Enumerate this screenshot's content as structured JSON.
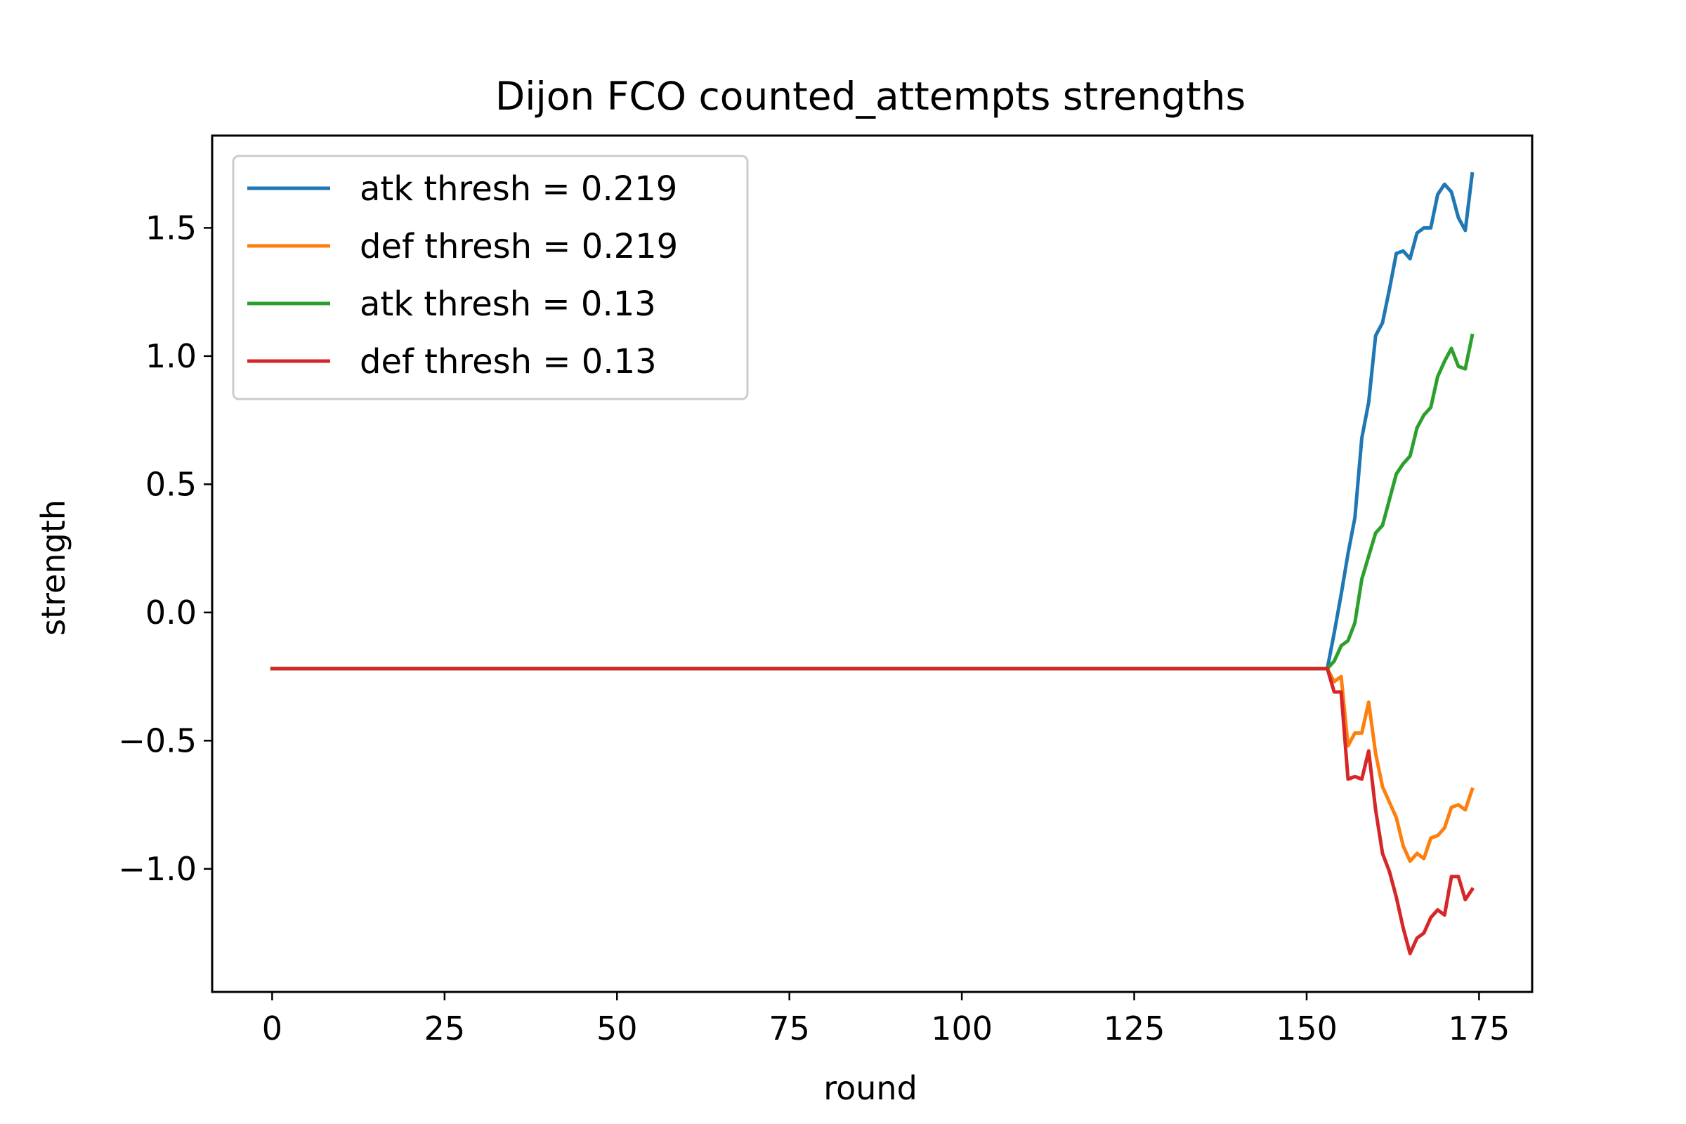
{
  "chart_data": {
    "type": "line",
    "title": "Dijon FCO counted_attempts strengths",
    "xlabel": "round",
    "ylabel": "strength",
    "xlim": [
      -8.7,
      182.7
    ],
    "ylim": [
      -1.48,
      1.86
    ],
    "xticks": [
      0,
      25,
      50,
      75,
      100,
      125,
      150,
      175
    ],
    "xtick_labels": [
      "0",
      "25",
      "50",
      "75",
      "100",
      "125",
      "150",
      "175"
    ],
    "yticks": [
      -1.0,
      -0.5,
      0.0,
      0.5,
      1.0,
      1.5
    ],
    "ytick_labels": [
      "−1.0",
      "−0.5",
      "0.0",
      "0.5",
      "1.0",
      "1.5"
    ],
    "grid": false,
    "legend_position": "upper-left",
    "series": [
      {
        "name": "atk thresh = 0.219",
        "color": "#1f77b4",
        "points": [
          [
            0,
            -0.219
          ],
          [
            153,
            -0.219
          ],
          [
            154,
            -0.08
          ],
          [
            155,
            0.07
          ],
          [
            156,
            0.23
          ],
          [
            157,
            0.37
          ],
          [
            158,
            0.68
          ],
          [
            159,
            0.82
          ],
          [
            160,
            1.08
          ],
          [
            161,
            1.13
          ],
          [
            162,
            1.26
          ],
          [
            163,
            1.4
          ],
          [
            164,
            1.41
          ],
          [
            165,
            1.38
          ],
          [
            166,
            1.48
          ],
          [
            167,
            1.5
          ],
          [
            168,
            1.5
          ],
          [
            169,
            1.63
          ],
          [
            170,
            1.67
          ],
          [
            171,
            1.64
          ],
          [
            172,
            1.54
          ],
          [
            173,
            1.49
          ],
          [
            174,
            1.71
          ]
        ]
      },
      {
        "name": "def thresh = 0.219",
        "color": "#ff7f0e",
        "points": [
          [
            0,
            -0.219
          ],
          [
            153,
            -0.219
          ],
          [
            154,
            -0.27
          ],
          [
            155,
            -0.25
          ],
          [
            156,
            -0.52
          ],
          [
            157,
            -0.47
          ],
          [
            158,
            -0.47
          ],
          [
            159,
            -0.35
          ],
          [
            160,
            -0.55
          ],
          [
            161,
            -0.68
          ],
          [
            162,
            -0.74
          ],
          [
            163,
            -0.8
          ],
          [
            164,
            -0.91
          ],
          [
            165,
            -0.97
          ],
          [
            166,
            -0.94
          ],
          [
            167,
            -0.96
          ],
          [
            168,
            -0.88
          ],
          [
            169,
            -0.87
          ],
          [
            170,
            -0.84
          ],
          [
            171,
            -0.76
          ],
          [
            172,
            -0.75
          ],
          [
            173,
            -0.77
          ],
          [
            174,
            -0.69
          ]
        ]
      },
      {
        "name": "atk thresh = 0.13",
        "color": "#2ca02c",
        "points": [
          [
            0,
            -0.219
          ],
          [
            153,
            -0.219
          ],
          [
            154,
            -0.19
          ],
          [
            155,
            -0.13
          ],
          [
            156,
            -0.11
          ],
          [
            157,
            -0.04
          ],
          [
            158,
            0.13
          ],
          [
            159,
            0.22
          ],
          [
            160,
            0.31
          ],
          [
            161,
            0.34
          ],
          [
            162,
            0.44
          ],
          [
            163,
            0.54
          ],
          [
            164,
            0.58
          ],
          [
            165,
            0.61
          ],
          [
            166,
            0.72
          ],
          [
            167,
            0.77
          ],
          [
            168,
            0.8
          ],
          [
            169,
            0.92
          ],
          [
            170,
            0.98
          ],
          [
            171,
            1.03
          ],
          [
            172,
            0.96
          ],
          [
            173,
            0.95
          ],
          [
            174,
            1.08
          ]
        ]
      },
      {
        "name": "def thresh = 0.13",
        "color": "#d62728",
        "points": [
          [
            0,
            -0.219
          ],
          [
            153,
            -0.219
          ],
          [
            154,
            -0.31
          ],
          [
            155,
            -0.31
          ],
          [
            156,
            -0.65
          ],
          [
            157,
            -0.64
          ],
          [
            158,
            -0.65
          ],
          [
            159,
            -0.54
          ],
          [
            160,
            -0.77
          ],
          [
            161,
            -0.94
          ],
          [
            162,
            -1.01
          ],
          [
            163,
            -1.11
          ],
          [
            164,
            -1.23
          ],
          [
            165,
            -1.33
          ],
          [
            166,
            -1.27
          ],
          [
            167,
            -1.25
          ],
          [
            168,
            -1.19
          ],
          [
            169,
            -1.16
          ],
          [
            170,
            -1.18
          ],
          [
            171,
            -1.03
          ],
          [
            172,
            -1.03
          ],
          [
            173,
            -1.12
          ],
          [
            174,
            -1.08
          ]
        ]
      }
    ]
  }
}
